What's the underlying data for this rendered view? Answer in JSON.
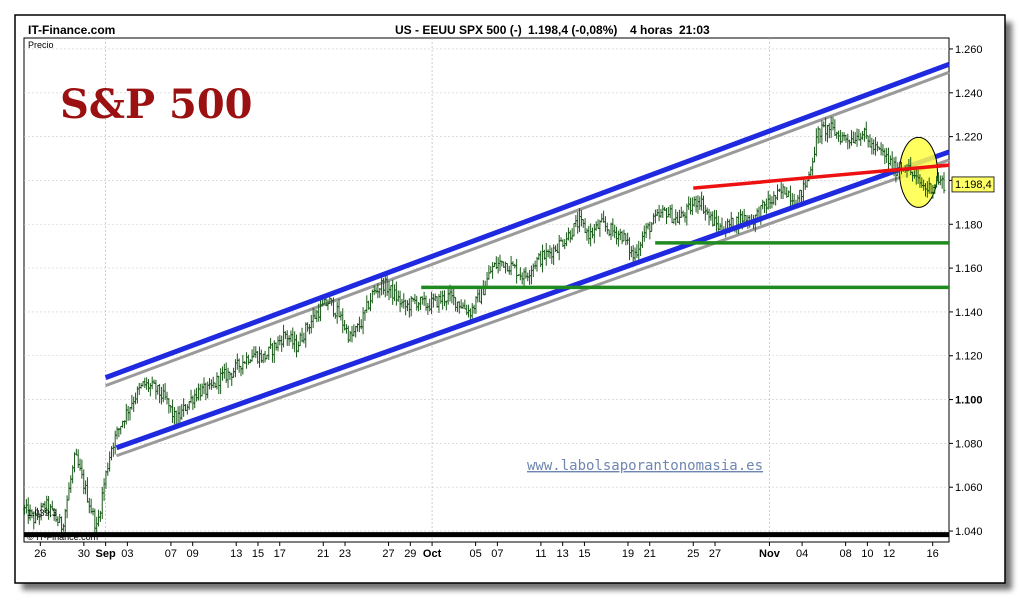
{
  "header": {
    "brand": "IT-Finance.com",
    "instrument": "US - EEUU SPX 500 (-)",
    "last_change": "1.198,4 (-0,08%)",
    "timeframe": "4 horas",
    "time": "21:03"
  },
  "panel_label": "Precio",
  "big_title": "S&P 500",
  "watermark_url": "www.labolsaporantonomasia.es",
  "copyright": "© IT-Finance.com",
  "low_value_label": "1.039,3",
  "last_price_label": "1.198,4",
  "colors": {
    "price_bar": "#1a5a1a",
    "channel": "#1f2ae0",
    "channel_shadow": "#9a9a9a",
    "support": "#1f8a1f",
    "red_line": "#ee1111",
    "highlight": "#ffff44",
    "baseline": "#000000",
    "title": "#9b1010"
  },
  "chart_data": {
    "type": "ohlc",
    "title": "US - EEUU SPX 500 (-)",
    "ylabel": "Precio",
    "ylim": [
      1.035,
      1.265
    ],
    "y_ticks": [
      "1.040",
      "1.060",
      "1.080",
      "1.100",
      "1.120",
      "1.140",
      "1.160",
      "1.180",
      "1.200",
      "1.220",
      "1.240",
      "1.260"
    ],
    "y_tick_values": [
      1.04,
      1.06,
      1.08,
      1.1,
      1.12,
      1.14,
      1.16,
      1.18,
      1.2,
      1.22,
      1.24,
      1.26
    ],
    "bold_tick": "1.100",
    "x_ticks": [
      "26",
      "30",
      "Sep",
      "03",
      "07",
      "09",
      "13",
      "15",
      "17",
      "21",
      "23",
      "27",
      "29",
      "Oct",
      "05",
      "07",
      "11",
      "13",
      "15",
      "19",
      "21",
      "25",
      "27",
      "Nov",
      "04",
      "08",
      "10",
      "12",
      "16"
    ],
    "month_labels": [
      "Sep",
      "Oct",
      "Nov"
    ],
    "x_tick_days": [
      -5,
      -1,
      1,
      3,
      7,
      9,
      13,
      15,
      17,
      21,
      23,
      27,
      29,
      31,
      35,
      37,
      41,
      43,
      45,
      49,
      51,
      55,
      57,
      62,
      65,
      69,
      71,
      73,
      77
    ],
    "x_range_days": [
      -6.5,
      78.5
    ],
    "x_note": "day offsets counted from Sep 1",
    "price_path": [
      [
        -6.5,
        1.05
      ],
      [
        -5.5,
        1.045
      ],
      [
        -4.5,
        1.052
      ],
      [
        -3.0,
        1.042
      ],
      [
        -1.8,
        1.074
      ],
      [
        -0.8,
        1.058
      ],
      [
        0.2,
        1.041
      ],
      [
        0.8,
        1.06
      ],
      [
        1.5,
        1.078
      ],
      [
        2.5,
        1.09
      ],
      [
        3.5,
        1.1
      ],
      [
        4.5,
        1.107
      ],
      [
        5.5,
        1.105
      ],
      [
        6.5,
        1.1
      ],
      [
        7.5,
        1.09
      ],
      [
        8.5,
        1.098
      ],
      [
        9.5,
        1.104
      ],
      [
        10.5,
        1.104
      ],
      [
        11.5,
        1.11
      ],
      [
        12.5,
        1.112
      ],
      [
        13.5,
        1.117
      ],
      [
        14.5,
        1.121
      ],
      [
        15.5,
        1.119
      ],
      [
        16.5,
        1.124
      ],
      [
        17.5,
        1.13
      ],
      [
        18.5,
        1.124
      ],
      [
        19.5,
        1.133
      ],
      [
        20.5,
        1.14
      ],
      [
        21.5,
        1.145
      ],
      [
        22.5,
        1.138
      ],
      [
        23.5,
        1.128
      ],
      [
        24.5,
        1.135
      ],
      [
        25.5,
        1.148
      ],
      [
        26.5,
        1.153
      ],
      [
        27.5,
        1.148
      ],
      [
        28.5,
        1.142
      ],
      [
        29.5,
        1.145
      ],
      [
        30.5,
        1.143
      ],
      [
        31.5,
        1.145
      ],
      [
        32.5,
        1.147
      ],
      [
        33.5,
        1.144
      ],
      [
        34.5,
        1.14
      ],
      [
        35.5,
        1.148
      ],
      [
        36.5,
        1.16
      ],
      [
        37.5,
        1.163
      ],
      [
        38.5,
        1.16
      ],
      [
        39.5,
        1.156
      ],
      [
        40.5,
        1.163
      ],
      [
        41.5,
        1.166
      ],
      [
        42.5,
        1.17
      ],
      [
        43.5,
        1.175
      ],
      [
        44.5,
        1.181
      ],
      [
        45.5,
        1.175
      ],
      [
        46.5,
        1.18
      ],
      [
        47.5,
        1.177
      ],
      [
        48.5,
        1.175
      ],
      [
        49.5,
        1.165
      ],
      [
        50.5,
        1.176
      ],
      [
        51.5,
        1.182
      ],
      [
        52.5,
        1.186
      ],
      [
        53.5,
        1.182
      ],
      [
        54.5,
        1.186
      ],
      [
        55.5,
        1.192
      ],
      [
        56.5,
        1.183
      ],
      [
        57.5,
        1.178
      ],
      [
        58.5,
        1.18
      ],
      [
        59.5,
        1.183
      ],
      [
        60.5,
        1.182
      ],
      [
        61.5,
        1.188
      ],
      [
        62.5,
        1.192
      ],
      [
        63.5,
        1.196
      ],
      [
        64.5,
        1.19
      ],
      [
        65.5,
        1.2
      ],
      [
        66.5,
        1.222
      ],
      [
        67.5,
        1.224
      ],
      [
        68.5,
        1.22
      ],
      [
        69.5,
        1.219
      ],
      [
        70.5,
        1.222
      ],
      [
        71.5,
        1.215
      ],
      [
        72.5,
        1.212
      ],
      [
        73.5,
        1.205
      ],
      [
        74.5,
        1.207
      ],
      [
        75.5,
        1.2
      ],
      [
        76.5,
        1.196
      ],
      [
        77.5,
        1.2
      ],
      [
        78.2,
        1.198
      ]
    ],
    "last_price": 1.1984,
    "low_marker": 1.0393,
    "lines": [
      {
        "name": "upper channel",
        "color": "#1f2ae0",
        "from": [
          1,
          1.11
        ],
        "to": [
          78.5,
          1.253
        ]
      },
      {
        "name": "lower channel",
        "color": "#1f2ae0",
        "from": [
          2,
          1.078
        ],
        "to": [
          78.5,
          1.213
        ]
      },
      {
        "name": "support 1.171",
        "color": "#1f8a1f",
        "from": [
          51.5,
          1.1715
        ],
        "to": [
          78.5,
          1.1715
        ]
      },
      {
        "name": "support 1.151",
        "color": "#1f8a1f",
        "from": [
          30,
          1.1512
        ],
        "to": [
          78.5,
          1.1512
        ]
      },
      {
        "name": "resistance",
        "color": "#ee1111",
        "from": [
          55,
          1.1965
        ],
        "to": [
          78.5,
          1.207
        ]
      }
    ]
  }
}
